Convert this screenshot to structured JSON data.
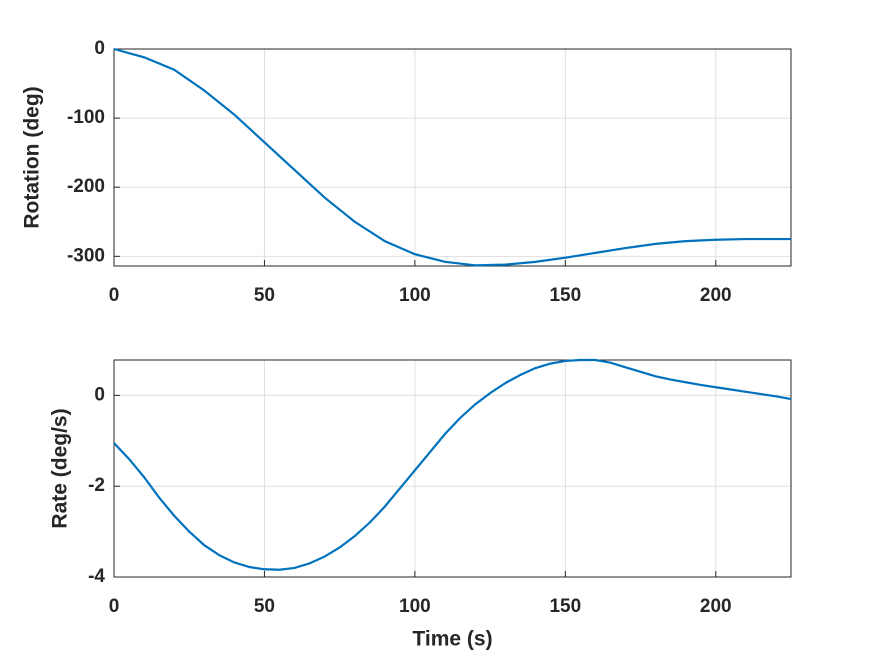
{
  "chart_data": [
    {
      "type": "line",
      "ylabel": "Rotation (deg)",
      "x": [
        0,
        10,
        20,
        30,
        40,
        50,
        60,
        70,
        80,
        90,
        100,
        110,
        120,
        130,
        140,
        150,
        160,
        170,
        180,
        190,
        200,
        210,
        220,
        225
      ],
      "values": [
        0,
        -12,
        -30,
        -60,
        -95,
        -135,
        -175,
        -215,
        -250,
        -278,
        -297,
        -308,
        -313,
        -312,
        -308,
        -302,
        -295,
        -288,
        -282,
        -278,
        -276,
        -275,
        -275,
        -275
      ],
      "color": "#0072bd",
      "xlim": [
        0,
        225
      ],
      "xticks": [
        0,
        50,
        100,
        150,
        200
      ],
      "ylim": [
        -314,
        0
      ],
      "yticks": [
        -300,
        -200,
        -100,
        0
      ],
      "grid": true
    },
    {
      "type": "line",
      "ylabel": "Rate (deg/s)",
      "xlabel": "Time (s)",
      "x": [
        0,
        5,
        10,
        15,
        20,
        25,
        30,
        35,
        40,
        45,
        50,
        55,
        60,
        65,
        70,
        75,
        80,
        85,
        90,
        95,
        100,
        105,
        110,
        115,
        120,
        125,
        130,
        135,
        140,
        145,
        150,
        155,
        160,
        165,
        170,
        175,
        180,
        185,
        190,
        195,
        200,
        205,
        210,
        215,
        220,
        225
      ],
      "values": [
        -1.05,
        -1.4,
        -1.8,
        -2.25,
        -2.65,
        -3.0,
        -3.3,
        -3.52,
        -3.68,
        -3.78,
        -3.83,
        -3.84,
        -3.8,
        -3.7,
        -3.55,
        -3.35,
        -3.1,
        -2.8,
        -2.45,
        -2.05,
        -1.65,
        -1.25,
        -0.85,
        -0.5,
        -0.2,
        0.05,
        0.27,
        0.45,
        0.6,
        0.7,
        0.76,
        0.78,
        0.78,
        0.72,
        0.62,
        0.52,
        0.42,
        0.35,
        0.29,
        0.23,
        0.18,
        0.13,
        0.08,
        0.03,
        -0.02,
        -0.08
      ],
      "color": "#0072bd",
      "xlim": [
        0,
        225
      ],
      "xticks": [
        0,
        50,
        100,
        150,
        200
      ],
      "ylim": [
        -4,
        0.78
      ],
      "yticks": [
        -4,
        -2,
        0
      ],
      "grid": true
    }
  ]
}
